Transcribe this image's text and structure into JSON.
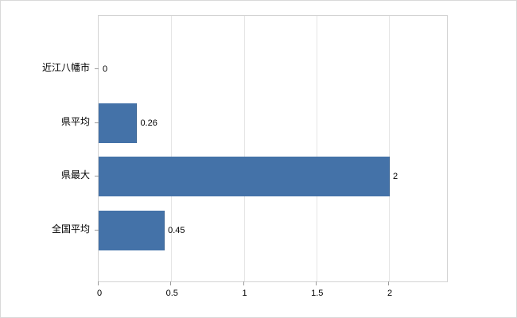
{
  "chart_data": {
    "type": "bar",
    "orientation": "horizontal",
    "title": "",
    "categories": [
      "近江八幡市",
      "県平均",
      "県最大",
      "全国平均"
    ],
    "values": [
      0,
      0.26,
      2,
      0.45
    ],
    "value_labels": [
      "0",
      "0.26",
      "2",
      "0.45"
    ],
    "x_ticks": [
      0,
      0.5,
      1,
      1.5,
      2
    ],
    "x_tick_labels": [
      "0",
      "0.5",
      "1",
      "1.5",
      "2"
    ],
    "xlim": [
      0,
      2.4
    ],
    "grid": true,
    "legend_position": "none",
    "bar_color": "#4472a8",
    "bar_edge_color": "#3b6493",
    "grid_color": "#e5e5e5",
    "axis_color": "#d3d3d3",
    "tick_color": "#9a9a9a",
    "text_color": "#000000"
  }
}
